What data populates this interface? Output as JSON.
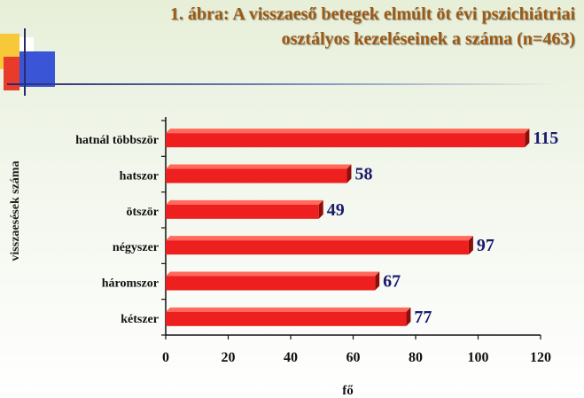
{
  "title_line1": "1. ábra: A visszaeső betegek elmúlt öt évi pszichiátriai",
  "title_line2": "osztályos kezeléseinek a száma (n=463)",
  "colors": {
    "bar_front": "#ee1f1f",
    "bar_top": "#ff6a5a",
    "bar_side": "#8e0e0e",
    "value_text": "#1b1b6e",
    "title_text": "#9c5a14"
  },
  "chart_data": {
    "type": "bar",
    "orientation": "horizontal",
    "categories": [
      "hatnál többször",
      "hatszor",
      "ötször",
      "négyszer",
      "háromszor",
      "kétszer"
    ],
    "values": [
      115,
      58,
      49,
      97,
      67,
      77
    ],
    "title": "1. ábra: A visszaeső betegek elmúlt öt évi pszichiátriai osztályos kezeléseinek a száma (n=463)",
    "xlabel": "fő",
    "ylabel": "visszaesések száma",
    "xlim": [
      0,
      120
    ],
    "xticks": [
      0,
      20,
      40,
      60,
      80,
      100,
      120
    ],
    "grid": false,
    "legend": "none"
  }
}
